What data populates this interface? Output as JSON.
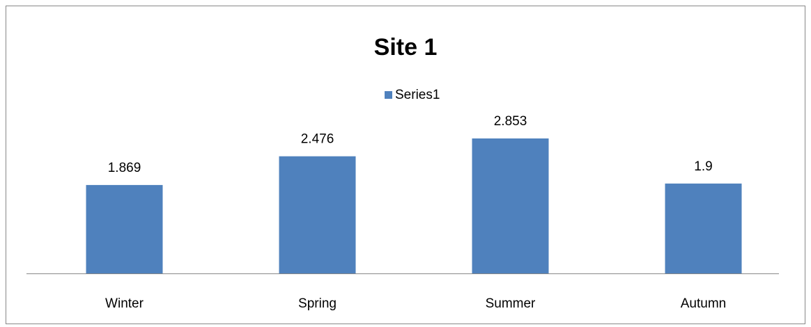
{
  "chart_data": {
    "type": "bar",
    "title": "Site 1",
    "categories": [
      "Winter",
      "Spring",
      "Summer",
      "Autumn"
    ],
    "series": [
      {
        "name": "Series1",
        "color": "#4f81bd",
        "values": [
          1.869,
          2.476,
          2.853,
          1.9
        ]
      }
    ],
    "legend": "top"
  }
}
